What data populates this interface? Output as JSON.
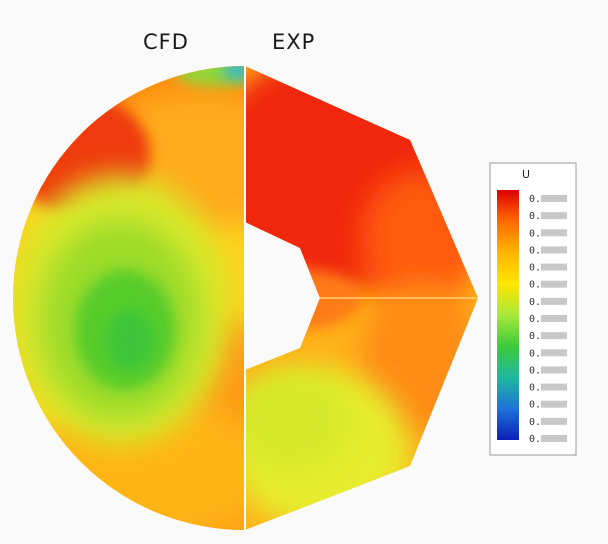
{
  "labels": {
    "left": "CFD",
    "right": "EXP"
  },
  "legend": {
    "symbol": "U",
    "tick_labels": [
      "0.",
      "0.",
      "0.",
      "0.",
      "0.",
      "0.",
      "0.",
      "0.",
      "0.",
      "0.",
      "0.",
      "0.",
      "0.",
      "0.",
      "0."
    ],
    "colors": [
      "#e00000",
      "#ff6a00",
      "#ffb400",
      "#ffe600",
      "#a8e83a",
      "#3ccb3a",
      "#1fb8a0",
      "#1e73d8",
      "#0a1fb5"
    ]
  }
}
